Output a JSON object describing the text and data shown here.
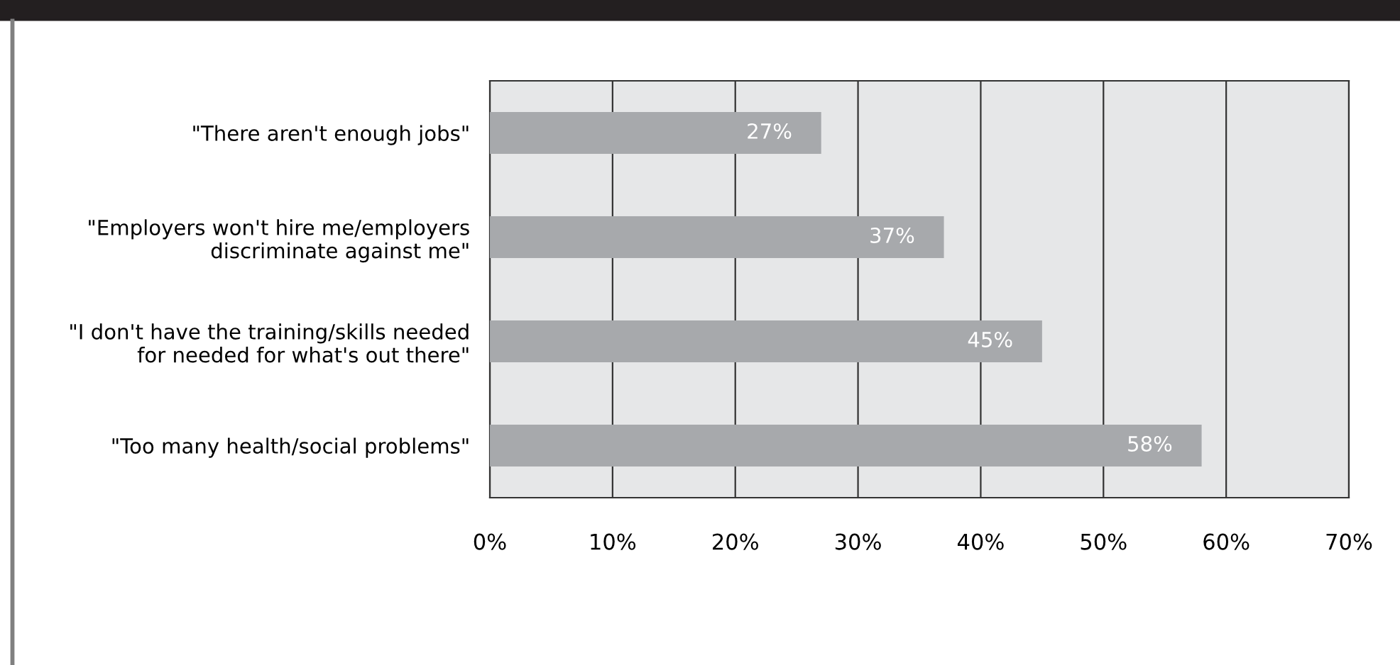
{
  "chart_data": {
    "type": "bar",
    "orientation": "horizontal",
    "categories": [
      "\"There aren't enough jobs\"",
      "\"Employers won't hire me/employers\ndiscriminate against me\"",
      "\"I don't have the training/skills needed\nfor needed for what's out there\"",
      "\"Too many health/social problems\""
    ],
    "values": [
      27,
      37,
      45,
      58
    ],
    "color": "#a7a9ac",
    "value_labels": [
      "27%",
      "37%",
      "45%",
      "58%"
    ],
    "xlim": [
      0,
      70
    ],
    "xticks": [
      {
        "value": 0,
        "label": "0%"
      },
      {
        "value": 10,
        "label": "10%"
      },
      {
        "value": 20,
        "label": "20%"
      },
      {
        "value": 30,
        "label": "30%"
      },
      {
        "value": 40,
        "label": "40%"
      },
      {
        "value": 50,
        "label": "50%"
      },
      {
        "value": 60,
        "label": "60%"
      },
      {
        "value": 70,
        "label": "70%"
      }
    ],
    "grid": "x"
  }
}
